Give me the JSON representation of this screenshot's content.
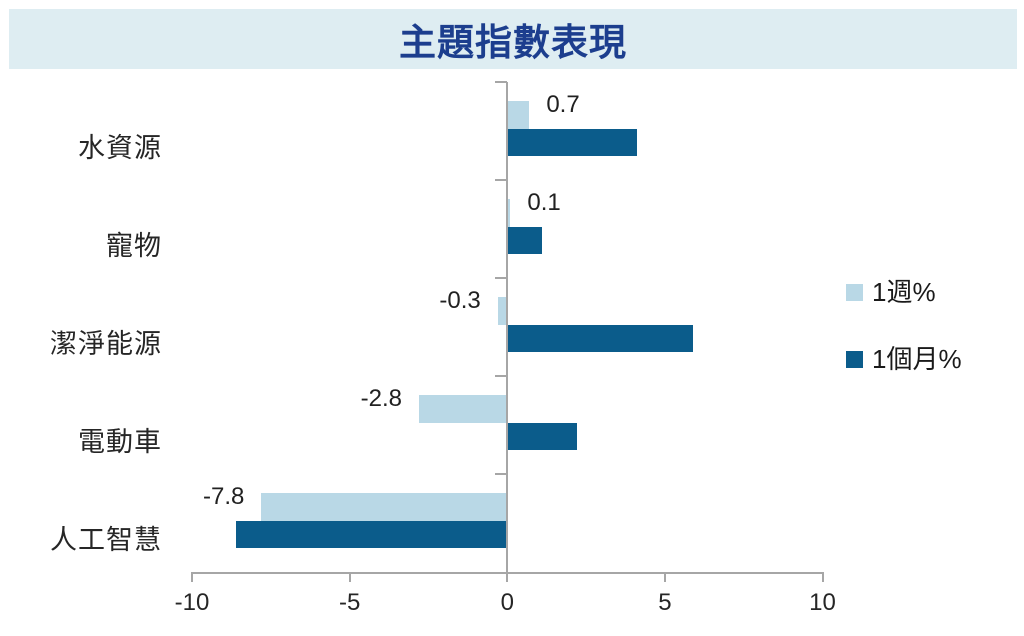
{
  "title": "主題指數表現",
  "colors": {
    "banner_bg": "#DEEDF2",
    "title_text": "#1C3E8E",
    "week_series": "#B9D8E6",
    "month_series": "#0B5C8B",
    "axis_line": "#A6A6A6",
    "text": "#262626"
  },
  "legend": {
    "items": [
      {
        "label": "1週%",
        "color": "#B9D8E6"
      },
      {
        "label": "1個月%",
        "color": "#0B5C8B"
      }
    ]
  },
  "chart_data": {
    "type": "bar",
    "orientation": "horizontal",
    "title": "主題指數表現",
    "categories": [
      "水資源",
      "寵物",
      "潔淨能源",
      "電動車",
      "人工智慧"
    ],
    "series": [
      {
        "name": "1週%",
        "color": "#B9D8E6",
        "values": [
          0.7,
          0.1,
          -0.3,
          -2.8,
          -7.8
        ],
        "data_labels": [
          "0.7",
          "0.1",
          "-0.3",
          "-2.8",
          "-7.8"
        ]
      },
      {
        "name": "1個月%",
        "color": "#0B5C8B",
        "values": [
          4.1,
          1.1,
          5.9,
          2.2,
          -8.6
        ],
        "data_labels": [
          null,
          null,
          null,
          null,
          null
        ]
      }
    ],
    "x_axis": {
      "min": -10,
      "max": 10,
      "ticks": [
        -10,
        -5,
        0,
        5,
        10
      ],
      "tick_labels": [
        "-10",
        "-5",
        "0",
        "5",
        "10"
      ]
    },
    "ylabel": "",
    "xlabel": "",
    "grid": false,
    "legend_position": "middle-right"
  }
}
